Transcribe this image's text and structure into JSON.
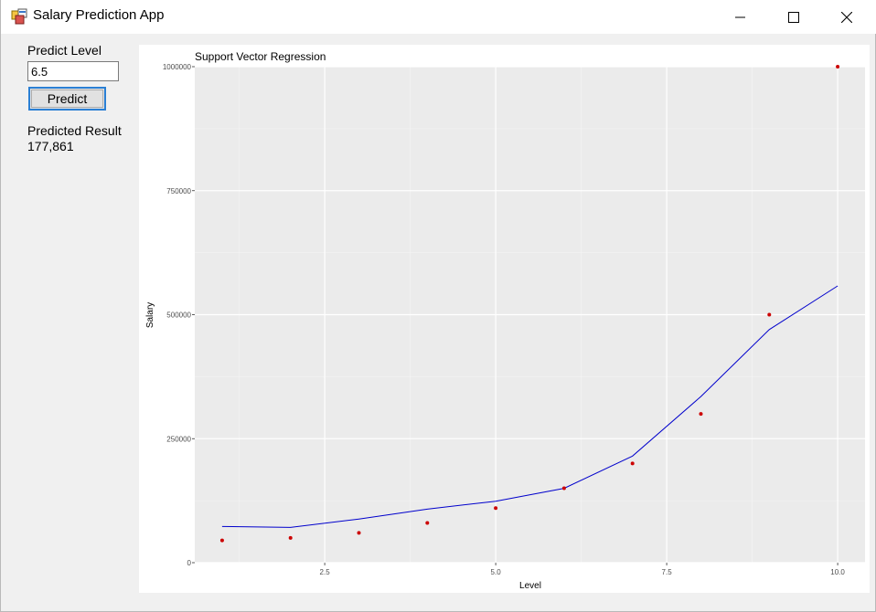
{
  "window": {
    "title": "Salary Prediction App",
    "icon": "app-icon",
    "controls": [
      "minimize-icon",
      "maximize-icon",
      "close-icon"
    ]
  },
  "form": {
    "level_label": "Predict Level",
    "level_value": "6.5",
    "predict_label": "Predict",
    "result_label": "Predicted Result",
    "result_value": "177,861"
  },
  "chart_data": {
    "type": "scatter",
    "title": "Support Vector Regression",
    "xlabel": "Level",
    "ylabel": "Salary",
    "xlim": [
      0.6,
      10.4
    ],
    "ylim": [
      0,
      1000000
    ],
    "grid": true,
    "background": "#ebebeb",
    "x_ticks": [
      2.5,
      5.0,
      7.5,
      10.0
    ],
    "x_tick_labels": [
      "2.5",
      "5.0",
      "7.5",
      "10.0"
    ],
    "y_ticks": [
      0,
      250000,
      500000,
      750000,
      1000000
    ],
    "y_tick_labels": [
      "0",
      "250000",
      "500000",
      "750000",
      "1000000"
    ],
    "series": [
      {
        "type": "scatter",
        "color": "#cc0000",
        "x": [
          1,
          2,
          3,
          4,
          5,
          6,
          7,
          8,
          9,
          10
        ],
        "y": [
          45000,
          50000,
          60000,
          80000,
          110000,
          150000,
          200000,
          300000,
          500000,
          1000000
        ]
      },
      {
        "type": "line",
        "color": "#0000cc",
        "x": [
          1,
          2,
          3,
          4,
          5,
          6,
          7,
          8,
          9,
          10
        ],
        "y": [
          73000,
          71000,
          88000,
          108000,
          124000,
          150000,
          215000,
          335000,
          470000,
          558000
        ]
      }
    ]
  }
}
